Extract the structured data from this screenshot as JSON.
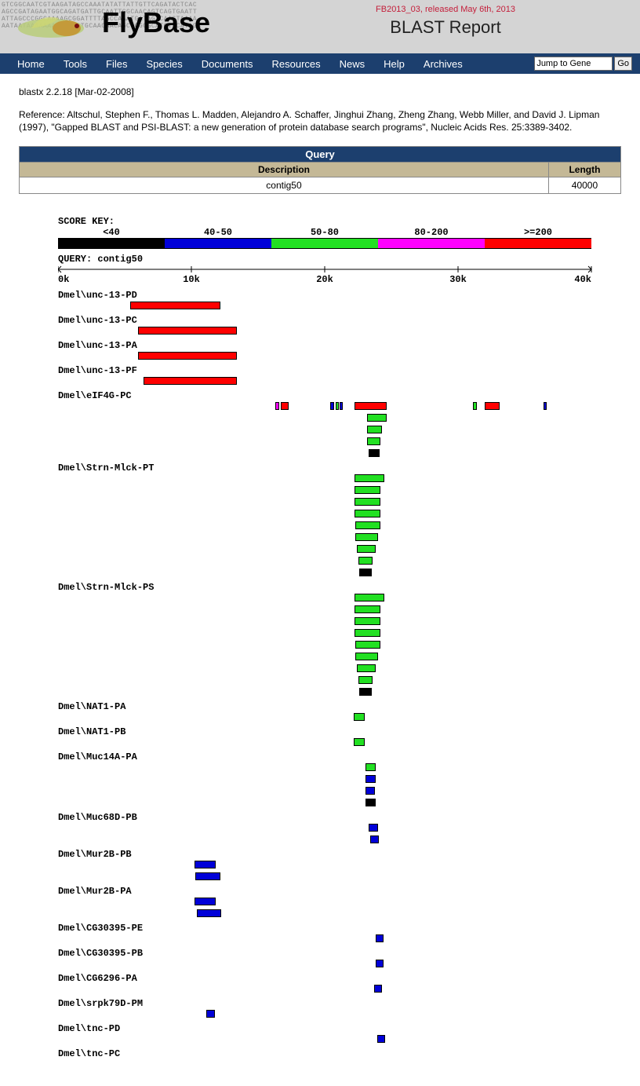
{
  "header": {
    "site_name": "FlyBase",
    "release": "FB2013_03, released May 6th, 2013",
    "report_title": "BLAST Report",
    "dna_seq": "GTCGGCAATCGTAAGATAGCCAAATATATTATTGTTCAGATACTCAC\nAGCCGATAGAATGGCAGATGATTGCAATTGGCAACAGTCAGTGAATT\nATTAGCCCGGCAAAAGCGGATTTTAGCCAAATGATAGTCAAGTAAAA\nAATAATAAAAAAACAACAGTGCAACAACAGCCGGGGCATCTTCATAGA"
  },
  "nav": {
    "items": [
      "Home",
      "Tools",
      "Files",
      "Species",
      "Documents",
      "Resources",
      "News",
      "Help",
      "Archives"
    ],
    "jump_placeholder": "Jump to Gene",
    "go_label": "Go"
  },
  "blast": {
    "version_line": "blastx 2.2.18 [Mar-02-2008]",
    "reference": "Reference: Altschul, Stephen F., Thomas L. Madden, Alejandro A. Schaffer, Jinghui Zhang, Zheng Zhang, Webb Miller, and David J. Lipman (1997), \"Gapped BLAST and PSI-BLAST: a new generation of protein database search programs\", Nucleic Acids Res. 25:3389-3402.",
    "query_header": "Query",
    "desc_header": "Description",
    "len_header": "Length",
    "query_desc": "contig50",
    "query_len": "40000"
  },
  "score_key": {
    "label": "SCORE KEY:",
    "ranges": [
      {
        "label": "<40",
        "color": "#000000",
        "frac": 0.2
      },
      {
        "label": "40-50",
        "color": "#0000d8",
        "frac": 0.2
      },
      {
        "label": "50-80",
        "color": "#22e022",
        "frac": 0.2
      },
      {
        "label": "80-200",
        "color": "#ff00ff",
        "frac": 0.2
      },
      {
        "label": ">=200",
        "color": "#ff0000",
        "frac": 0.2
      }
    ]
  },
  "axis": {
    "label": "QUERY: contig50",
    "max": 40000,
    "ticks": [
      "0k",
      "10k",
      "20k",
      "30k",
      "40k"
    ],
    "tick_positions": [
      0,
      0.25,
      0.5,
      0.75,
      1.0
    ]
  },
  "colors": {
    "black": "#000000",
    "blue": "#0000d8",
    "green": "#22e022",
    "magenta": "#ff00ff",
    "red": "#ff0000"
  },
  "hits": [
    {
      "label": "Dmel\\unc-13-PD",
      "rows": [
        [
          {
            "s": 0.135,
            "e": 0.305,
            "c": "red"
          }
        ]
      ]
    },
    {
      "label": "Dmel\\unc-13-PC",
      "rows": [
        [
          {
            "s": 0.15,
            "e": 0.335,
            "c": "red"
          }
        ]
      ]
    },
    {
      "label": "Dmel\\unc-13-PA",
      "rows": [
        [
          {
            "s": 0.15,
            "e": 0.335,
            "c": "red"
          }
        ]
      ]
    },
    {
      "label": "Dmel\\unc-13-PF",
      "rows": [
        [
          {
            "s": 0.16,
            "e": 0.335,
            "c": "red"
          }
        ]
      ]
    },
    {
      "label": "Dmel\\eIF4G-PC",
      "rows": [
        [
          {
            "s": 0.408,
            "e": 0.414,
            "c": "magenta"
          },
          {
            "s": 0.418,
            "e": 0.432,
            "c": "red"
          },
          {
            "s": 0.51,
            "e": 0.518,
            "c": "blue"
          },
          {
            "s": 0.52,
            "e": 0.526,
            "c": "green"
          },
          {
            "s": 0.528,
            "e": 0.534,
            "c": "blue"
          },
          {
            "s": 0.556,
            "e": 0.616,
            "c": "red"
          },
          {
            "s": 0.778,
            "e": 0.786,
            "c": "green"
          },
          {
            "s": 0.8,
            "e": 0.828,
            "c": "red"
          },
          {
            "s": 0.91,
            "e": 0.916,
            "c": "blue"
          }
        ],
        [
          {
            "s": 0.58,
            "e": 0.616,
            "c": "green"
          }
        ],
        [
          {
            "s": 0.58,
            "e": 0.608,
            "c": "green"
          }
        ],
        [
          {
            "s": 0.58,
            "e": 0.605,
            "c": "green"
          }
        ],
        [
          {
            "s": 0.583,
            "e": 0.603,
            "c": "black"
          }
        ]
      ]
    },
    {
      "label": "Dmel\\Strn-Mlck-PT",
      "rows": [
        [
          {
            "s": 0.556,
            "e": 0.612,
            "c": "green"
          }
        ],
        [
          {
            "s": 0.556,
            "e": 0.605,
            "c": "green"
          }
        ],
        [
          {
            "s": 0.556,
            "e": 0.605,
            "c": "green"
          }
        ],
        [
          {
            "s": 0.556,
            "e": 0.605,
            "c": "green"
          }
        ],
        [
          {
            "s": 0.558,
            "e": 0.605,
            "c": "green"
          }
        ],
        [
          {
            "s": 0.558,
            "e": 0.6,
            "c": "green"
          }
        ],
        [
          {
            "s": 0.56,
            "e": 0.596,
            "c": "green"
          }
        ],
        [
          {
            "s": 0.563,
            "e": 0.59,
            "c": "green"
          }
        ],
        [
          {
            "s": 0.565,
            "e": 0.588,
            "c": "black"
          }
        ]
      ]
    },
    {
      "label": "Dmel\\Strn-Mlck-PS",
      "rows": [
        [
          {
            "s": 0.556,
            "e": 0.612,
            "c": "green"
          }
        ],
        [
          {
            "s": 0.556,
            "e": 0.605,
            "c": "green"
          }
        ],
        [
          {
            "s": 0.556,
            "e": 0.605,
            "c": "green"
          }
        ],
        [
          {
            "s": 0.556,
            "e": 0.605,
            "c": "green"
          }
        ],
        [
          {
            "s": 0.558,
            "e": 0.605,
            "c": "green"
          }
        ],
        [
          {
            "s": 0.558,
            "e": 0.6,
            "c": "green"
          }
        ],
        [
          {
            "s": 0.56,
            "e": 0.596,
            "c": "green"
          }
        ],
        [
          {
            "s": 0.563,
            "e": 0.59,
            "c": "green"
          }
        ],
        [
          {
            "s": 0.565,
            "e": 0.588,
            "c": "black"
          }
        ]
      ]
    },
    {
      "label": "Dmel\\NAT1-PA",
      "rows": [
        [
          {
            "s": 0.555,
            "e": 0.575,
            "c": "green"
          }
        ]
      ]
    },
    {
      "label": "Dmel\\NAT1-PB",
      "rows": [
        [
          {
            "s": 0.555,
            "e": 0.575,
            "c": "green"
          }
        ]
      ]
    },
    {
      "label": "Dmel\\Muc14A-PA",
      "rows": [
        [
          {
            "s": 0.576,
            "e": 0.596,
            "c": "green"
          }
        ],
        [
          {
            "s": 0.576,
            "e": 0.596,
            "c": "blue"
          }
        ],
        [
          {
            "s": 0.576,
            "e": 0.594,
            "c": "blue"
          }
        ],
        [
          {
            "s": 0.576,
            "e": 0.596,
            "c": "black"
          }
        ]
      ]
    },
    {
      "label": "Dmel\\Muc68D-PB",
      "rows": [
        [
          {
            "s": 0.582,
            "e": 0.6,
            "c": "blue"
          }
        ],
        [
          {
            "s": 0.585,
            "e": 0.602,
            "c": "blue"
          }
        ]
      ]
    },
    {
      "label": "Dmel\\Mur2B-PB",
      "rows": [
        [
          {
            "s": 0.256,
            "e": 0.296,
            "c": "blue"
          }
        ],
        [
          {
            "s": 0.258,
            "e": 0.304,
            "c": "blue"
          }
        ]
      ]
    },
    {
      "label": "Dmel\\Mur2B-PA",
      "rows": [
        [
          {
            "s": 0.256,
            "e": 0.296,
            "c": "blue"
          }
        ],
        [
          {
            "s": 0.26,
            "e": 0.306,
            "c": "blue"
          }
        ]
      ]
    },
    {
      "label": "Dmel\\CG30395-PE",
      "rows": [
        [
          {
            "s": 0.596,
            "e": 0.61,
            "c": "blue"
          }
        ]
      ]
    },
    {
      "label": "Dmel\\CG30395-PB",
      "rows": [
        [
          {
            "s": 0.596,
            "e": 0.61,
            "c": "blue"
          }
        ]
      ]
    },
    {
      "label": "Dmel\\CG6296-PA",
      "rows": [
        [
          {
            "s": 0.593,
            "e": 0.607,
            "c": "blue"
          }
        ]
      ]
    },
    {
      "label": "Dmel\\srpk79D-PM",
      "rows": [
        [
          {
            "s": 0.278,
            "e": 0.294,
            "c": "blue"
          }
        ]
      ]
    },
    {
      "label": "Dmel\\tnc-PD",
      "rows": [
        [
          {
            "s": 0.598,
            "e": 0.613,
            "c": "blue"
          }
        ]
      ]
    },
    {
      "label": "Dmel\\tnc-PC",
      "rows": [
        []
      ]
    }
  ]
}
